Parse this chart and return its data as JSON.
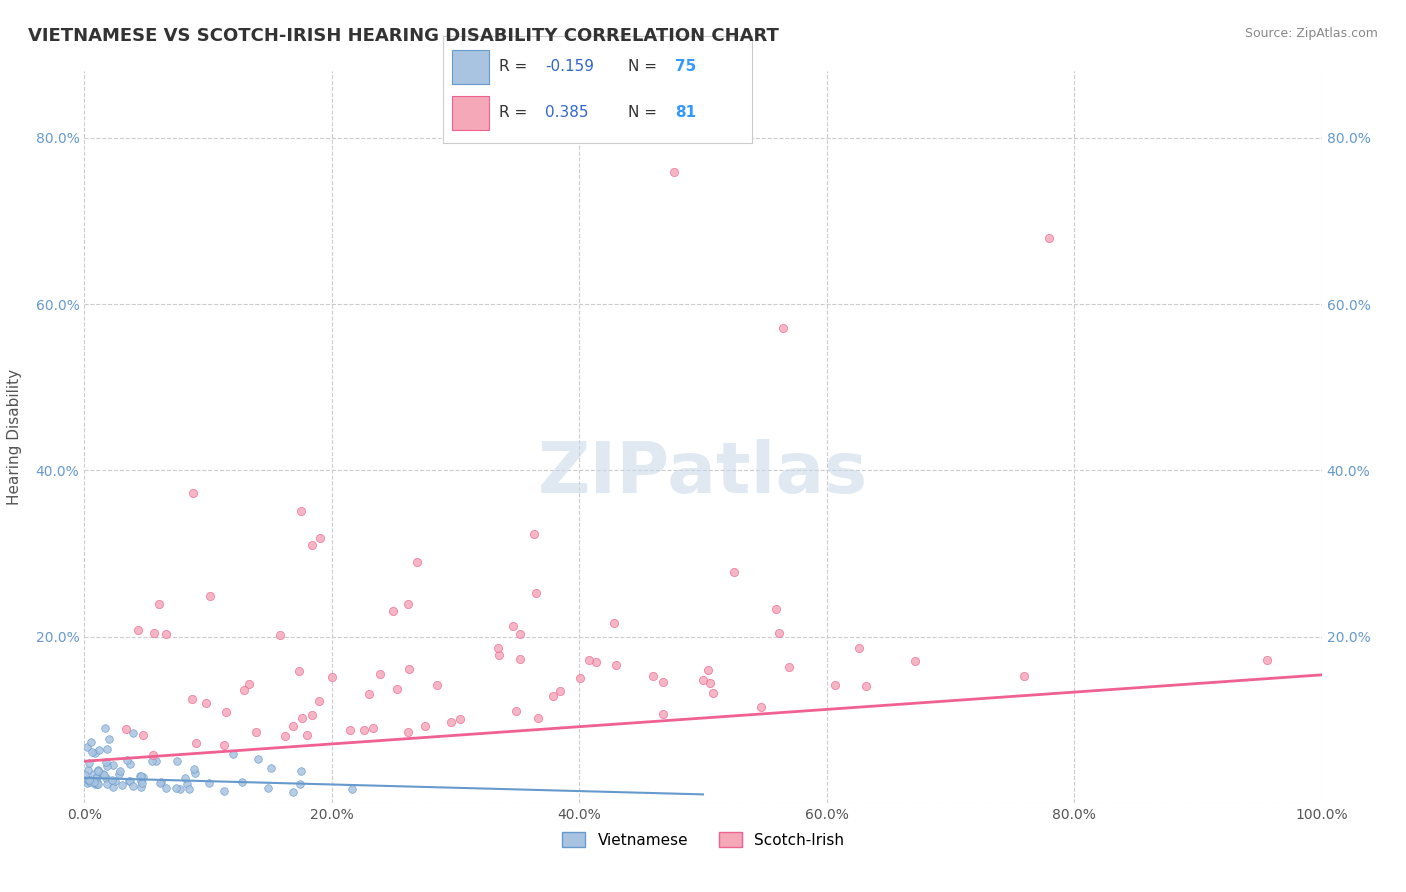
{
  "title": "VIETNAMESE VS SCOTCH-IRISH HEARING DISABILITY CORRELATION CHART",
  "source": "Source: ZipAtlas.com",
  "xlabel": "",
  "ylabel": "Hearing Disability",
  "xlim": [
    0,
    100
  ],
  "ylim": [
    0,
    88
  ],
  "x_ticks": [
    0,
    20,
    40,
    60,
    80,
    100
  ],
  "x_tick_labels": [
    "0.0%",
    "20.0%",
    "40.0%",
    "60.0%",
    "80.0%",
    "100.0%"
  ],
  "y_ticks": [
    0,
    20,
    40,
    60,
    80
  ],
  "y_tick_labels": [
    "",
    "20.0%",
    "40.0%",
    "60.0%",
    "80.0%"
  ],
  "vietnamese_color": "#a8c4e0",
  "scotchirish_color": "#f4a8b8",
  "vietnamese_line_color": "#6699cc",
  "scotchirish_line_color": "#f06090",
  "R_vietnamese": -0.159,
  "N_vietnamese": 75,
  "R_scotchirish": 0.385,
  "N_scotchirish": 81,
  "legend_R_color": "#3366cc",
  "legend_N_color": "#3399ff",
  "watermark": "ZIPatlas",
  "background_color": "#ffffff",
  "grid_color": "#cccccc",
  "right_tick_color": "#6699cc",
  "seed": 42
}
